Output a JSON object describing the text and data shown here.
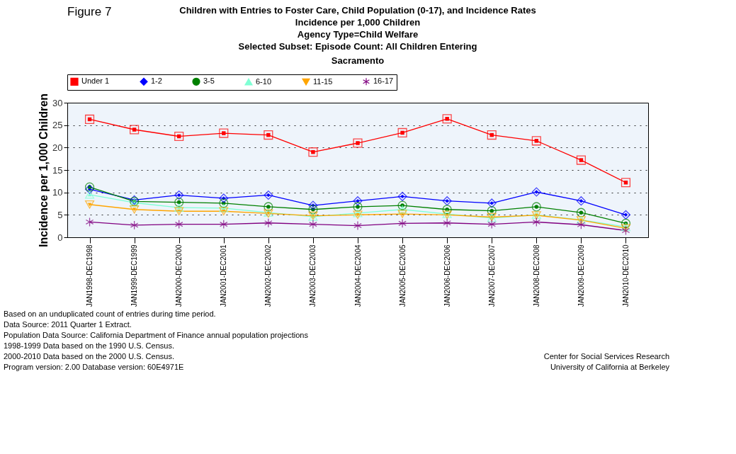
{
  "chart_data": {
    "type": "line",
    "title": "Children with Entries to Foster Care, Child Population (0-17), and Incidence Rates\nIncidence per 1,000 Children\nAgency Type=Child Welfare\nSelected Subset: Episode Count: All Children Entering",
    "subtitle": "Sacramento",
    "ylabel": "Incidence per 1,000 Children",
    "categories": [
      "JAN1998-DEC1998",
      "JAN1999-DEC1999",
      "JAN2000-DEC2000",
      "JAN2001-DEC2001",
      "JAN2002-DEC2002",
      "JAN2003-DEC2003",
      "JAN2004-DEC2004",
      "JAN2005-DEC2005",
      "JAN2006-DEC2006",
      "JAN2007-DEC2007",
      "JAN2008-DEC2008",
      "JAN2009-DEC2009",
      "JAN2010-DEC2010"
    ],
    "series": [
      {
        "name": "Under 1",
        "color": "#ff0000",
        "marker": "square",
        "values": [
          26.3,
          24.0,
          22.5,
          23.2,
          22.8,
          19.0,
          21.0,
          23.3,
          26.4,
          22.8,
          21.5,
          17.2,
          12.2
        ]
      },
      {
        "name": "1-2",
        "color": "#0000ff",
        "marker": "diamond",
        "values": [
          10.7,
          8.3,
          9.4,
          8.7,
          9.4,
          7.1,
          8.1,
          9.1,
          8.1,
          7.6,
          10.1,
          8.1,
          5.0
        ]
      },
      {
        "name": "3-5",
        "color": "#008000",
        "marker": "circle",
        "values": [
          11.2,
          8.0,
          7.8,
          7.6,
          6.8,
          6.2,
          6.8,
          7.1,
          6.2,
          5.9,
          6.8,
          5.5,
          3.1
        ]
      },
      {
        "name": "6-10",
        "color": "#7fffd4",
        "marker": "triangle",
        "values": [
          9.5,
          7.7,
          6.6,
          6.5,
          5.5,
          4.6,
          5.4,
          6.2,
          5.2,
          4.3,
          5.0,
          3.9,
          2.3
        ]
      },
      {
        "name": "11-15",
        "color": "#ffa500",
        "marker": "triangle-down",
        "values": [
          7.3,
          6.2,
          5.8,
          5.8,
          5.3,
          4.8,
          5.0,
          5.2,
          5.0,
          4.5,
          4.9,
          3.8,
          2.0
        ]
      },
      {
        "name": "16-17",
        "color": "#800080",
        "marker": "cross",
        "values": [
          3.4,
          2.7,
          2.9,
          2.9,
          3.2,
          2.9,
          2.6,
          3.1,
          3.2,
          2.9,
          3.4,
          2.8,
          1.5
        ]
      }
    ],
    "ylim": [
      0,
      30
    ],
    "yticks": [
      0,
      5,
      10,
      15,
      20,
      25,
      30
    ],
    "grid": "y",
    "line_style": "solid",
    "legend": "top",
    "annotations": [
      "Figure 7",
      "Based on an unduplicated count of entries during time period.",
      "Data Source: 2011 Quarter 1 Extract.",
      "Population Data Source: California Department of Finance annual population projections",
      "1998-1999 Data based on the 1990 U.S. Census.",
      "2000-2010 Data based on the 2000 U.S. Census.",
      "Program version: 2.00 Database version: 60E4971E",
      "Center for Social Services Research",
      "University of California at Berkeley"
    ]
  }
}
